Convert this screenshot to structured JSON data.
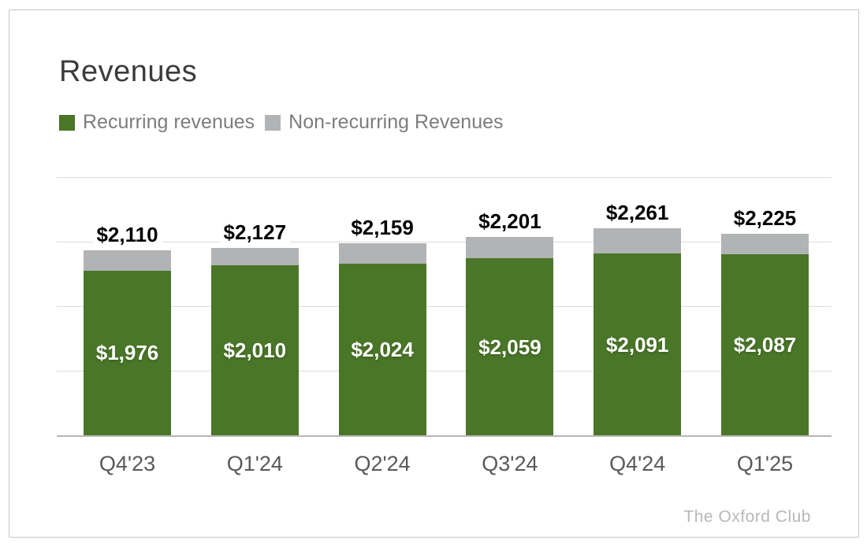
{
  "chart_data": {
    "type": "bar",
    "stacked": true,
    "title": "Revenues",
    "categories": [
      "Q4'23",
      "Q1'24",
      "Q2'24",
      "Q3'24",
      "Q4'24",
      "Q1'25"
    ],
    "series": [
      {
        "name": "Recurring revenues",
        "color": "#4a7628",
        "values": [
          1976,
          2010,
          2024,
          2059,
          2091,
          2087
        ],
        "labels": [
          "$1,976",
          "$2,010",
          "$2,024",
          "$2,059",
          "$2,091",
          "$2,087"
        ]
      },
      {
        "name": "Non-recurring Revenues",
        "color": "#b1b3b5",
        "values": [
          134,
          117,
          135,
          142,
          170,
          138
        ]
      }
    ],
    "totals": [
      2110,
      2127,
      2159,
      2201,
      2261,
      2225
    ],
    "total_labels": [
      "$2,110",
      "$2,127",
      "$2,159",
      "$2,201",
      "$2,261",
      "$2,225"
    ],
    "grid": "horizontal",
    "legend_position": "top-left",
    "y_axis_labels_visible": false,
    "ylim_estimate": [
      870,
      2600
    ],
    "source": "The Oxford Club"
  },
  "colors": {
    "recurring_green": "#4a7628",
    "non_recurring_gray": "#b1b3b5",
    "gridline": "#dcdcdc",
    "axis_line": "#b7b7b7",
    "title_text": "#3b3b3b",
    "legend_text": "#7d7d7d",
    "category_text": "#595959",
    "total_label_text": "#000000",
    "inner_label_text": "#ffffff",
    "source_text": "#b5b8ba",
    "card_border": "#c6c6c6"
  }
}
